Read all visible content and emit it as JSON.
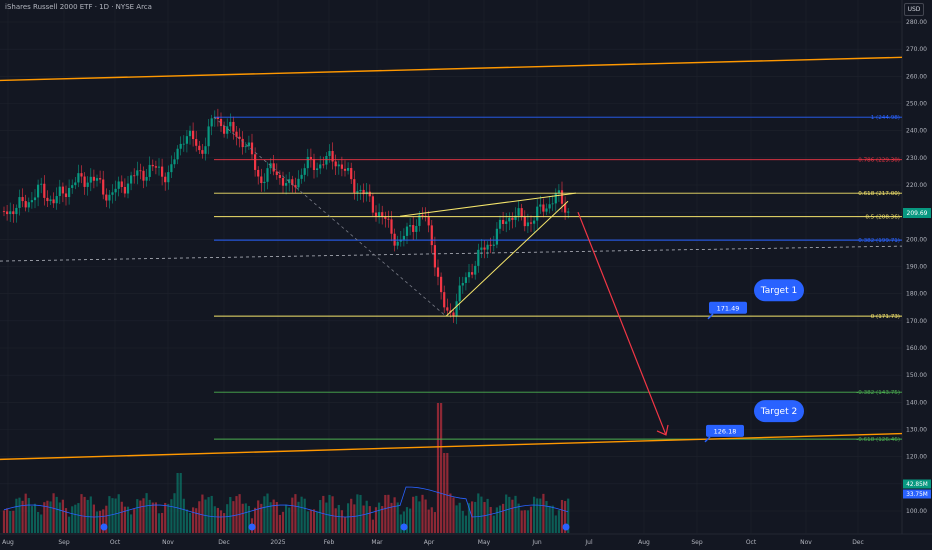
{
  "header": {
    "title": "iShares Russell 2000 ETF · 1D · NYSE Arca",
    "currency": "USD"
  },
  "colors": {
    "background": "#131722",
    "grid": "#1e222d",
    "up": "#089981",
    "down": "#f23645",
    "fib_blue": "#2962ff",
    "fib_red": "#f23645",
    "fib_yellow": "#f5e56b",
    "fib_green": "#4caf50",
    "channel": "#ff9800",
    "arrow": "#f23645",
    "label_blue": "#2962ff",
    "vol_ma": "#2962ff"
  },
  "chart_data": {
    "type": "candlestick",
    "y_axis_ticks": [
      100,
      110,
      120,
      130,
      140,
      150,
      160,
      170,
      180,
      190,
      200,
      210,
      220,
      230,
      240,
      250,
      260,
      270,
      280
    ],
    "ylim": [
      95,
      285
    ],
    "x_axis_ticks": [
      "Aug",
      "Sep",
      "Oct",
      "Nov",
      "Dec",
      "2025",
      "Feb",
      "Mar",
      "Apr",
      "May",
      "Jun",
      "Jul",
      "Aug",
      "Sep",
      "Oct",
      "Nov",
      "Dec"
    ],
    "last_price": "209.69",
    "fib_levels": [
      {
        "ratio": "1",
        "value": 244.98,
        "label": "1 (244.98)",
        "color": "#2962ff"
      },
      {
        "ratio": "0.786",
        "value": 229.3,
        "label": "0.786 (229.30)",
        "color": "#f23645"
      },
      {
        "ratio": "0.618",
        "value": 217.0,
        "label": "0.618 (217.00)",
        "color": "#f5e56b"
      },
      {
        "ratio": "0.5",
        "value": 208.36,
        "label": "0.5 (208.36)",
        "color": "#f5e56b"
      },
      {
        "ratio": "0.382",
        "value": 199.71,
        "label": "0.382 (199.71)",
        "color": "#2962ff"
      },
      {
        "ratio": "0",
        "value": 171.73,
        "label": "0 (171.73)",
        "color": "#f5e56b"
      },
      {
        "ratio": "-0.382",
        "value": 143.75,
        "label": "-0.382 (143.75)",
        "color": "#4caf50"
      },
      {
        "ratio": "-0.618",
        "value": 126.46,
        "label": "-0.618 (126.46)",
        "color": "#4caf50"
      }
    ],
    "price_labels": [
      {
        "text": "171.49",
        "value": 171.49
      },
      {
        "text": "126.18",
        "value": 126.18
      }
    ],
    "targets": [
      {
        "text": "Target 1",
        "value": 182
      },
      {
        "text": "Target 2",
        "value": 137.5
      }
    ],
    "volume_labels": [
      "42.85M",
      "33.75M"
    ],
    "price_anchors": [
      [
        0,
        210
      ],
      [
        20,
        212
      ],
      [
        40,
        218
      ],
      [
        55,
        214
      ],
      [
        70,
        220
      ],
      [
        90,
        223
      ],
      [
        110,
        216
      ],
      [
        130,
        222
      ],
      [
        150,
        226
      ],
      [
        170,
        224
      ],
      [
        185,
        240
      ],
      [
        200,
        232
      ],
      [
        215,
        245
      ],
      [
        230,
        240
      ],
      [
        245,
        236
      ],
      [
        260,
        222
      ],
      [
        275,
        226
      ],
      [
        290,
        218
      ],
      [
        305,
        227
      ],
      [
        320,
        228
      ],
      [
        335,
        230
      ],
      [
        350,
        222
      ],
      [
        365,
        216
      ],
      [
        378,
        210
      ],
      [
        390,
        204
      ],
      [
        400,
        198
      ],
      [
        412,
        206
      ],
      [
        425,
        208
      ],
      [
        432,
        200
      ],
      [
        440,
        180
      ],
      [
        446,
        172
      ],
      [
        455,
        176
      ],
      [
        465,
        185
      ],
      [
        475,
        192
      ],
      [
        488,
        198
      ],
      [
        500,
        204
      ],
      [
        512,
        210
      ],
      [
        525,
        206
      ],
      [
        540,
        210
      ],
      [
        555,
        216
      ],
      [
        565,
        212
      ],
      [
        572,
        209.7
      ]
    ]
  }
}
